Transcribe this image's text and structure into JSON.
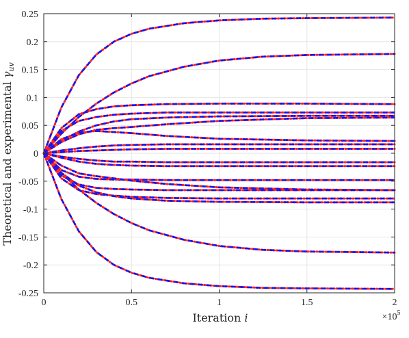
{
  "chart_data": {
    "type": "line",
    "title": "",
    "xlabel": "Iteration i",
    "ylabel": "Theoretical and experimental γ_uv",
    "xlabel_text": "Iteration",
    "xlabel_var": "i",
    "ylabel_text": "Theoretical and experimental",
    "ylabel_var": "γ",
    "ylabel_sub": "uv",
    "x_exponent_base": "×10",
    "x_exponent_power": "5",
    "xlim": [
      0,
      200000
    ],
    "ylim": [
      -0.25,
      0.25
    ],
    "x_tick_values": [
      0,
      50000,
      100000,
      150000,
      200000
    ],
    "x_tick_labels": [
      "0",
      "0.5",
      "1",
      "1.5",
      "2"
    ],
    "y_tick_values": [
      0.25,
      0.2,
      0.15,
      0.1,
      0.05,
      0,
      -0.05,
      -0.1,
      -0.15,
      -0.2,
      -0.25
    ],
    "y_tick_labels": [
      "0.25",
      "0.2",
      "0.15",
      "0.1",
      "0.05",
      "0",
      "-0.05",
      "-0.1",
      "-0.15",
      "-0.2",
      "-0.25"
    ],
    "grid": true,
    "styles": {
      "theoretical": {
        "color": "#ff2020",
        "dash": "dotted"
      },
      "experimental": {
        "color": "#1515ee",
        "dash": "dashed"
      }
    },
    "series": [
      {
        "values": [
          [
            0,
            0
          ],
          [
            10000,
            0.082
          ],
          [
            20000,
            0.14
          ],
          [
            30000,
            0.177
          ],
          [
            40000,
            0.2
          ],
          [
            50000,
            0.214
          ],
          [
            60000,
            0.223
          ],
          [
            80000,
            0.233
          ],
          [
            100000,
            0.238
          ],
          [
            125000,
            0.241
          ],
          [
            150000,
            0.242
          ],
          [
            200000,
            0.243
          ]
        ]
      },
      {
        "values": [
          [
            0,
            0
          ],
          [
            10000,
            0.035
          ],
          [
            20000,
            0.065
          ],
          [
            30000,
            0.089
          ],
          [
            40000,
            0.109
          ],
          [
            50000,
            0.125
          ],
          [
            60000,
            0.138
          ],
          [
            80000,
            0.155
          ],
          [
            100000,
            0.166
          ],
          [
            125000,
            0.173
          ],
          [
            150000,
            0.176
          ],
          [
            200000,
            0.178
          ]
        ]
      },
      {
        "values": [
          [
            0,
            0
          ],
          [
            10000,
            0.045
          ],
          [
            20000,
            0.07
          ],
          [
            30000,
            0.079
          ],
          [
            40000,
            0.084
          ],
          [
            50000,
            0.086
          ],
          [
            70000,
            0.088
          ],
          [
            100000,
            0.089
          ],
          [
            150000,
            0.089
          ],
          [
            200000,
            0.088
          ]
        ]
      },
      {
        "values": [
          [
            0,
            0
          ],
          [
            10000,
            0.04
          ],
          [
            20000,
            0.058
          ],
          [
            30000,
            0.065
          ],
          [
            40000,
            0.069
          ],
          [
            50000,
            0.071
          ],
          [
            70000,
            0.073
          ],
          [
            100000,
            0.073
          ],
          [
            150000,
            0.073
          ],
          [
            200000,
            0.073
          ]
        ]
      },
      {
        "values": [
          [
            0,
            0
          ],
          [
            10000,
            0.022
          ],
          [
            20000,
            0.039
          ],
          [
            30000,
            0.05
          ],
          [
            40000,
            0.057
          ],
          [
            50000,
            0.061
          ],
          [
            70000,
            0.064
          ],
          [
            100000,
            0.066
          ],
          [
            150000,
            0.067
          ],
          [
            200000,
            0.067
          ]
        ]
      },
      {
        "values": [
          [
            0,
            0
          ],
          [
            10000,
            0.02
          ],
          [
            20000,
            0.034
          ],
          [
            30000,
            0.042
          ],
          [
            40000,
            0.045
          ],
          [
            50000,
            0.047
          ],
          [
            70000,
            0.052
          ],
          [
            100000,
            0.058
          ],
          [
            150000,
            0.063
          ],
          [
            200000,
            0.064
          ]
        ]
      },
      {
        "values": [
          [
            0,
            0
          ],
          [
            10000,
            0.025
          ],
          [
            20000,
            0.037
          ],
          [
            30000,
            0.04
          ],
          [
            40000,
            0.038
          ],
          [
            50000,
            0.036
          ],
          [
            70000,
            0.031
          ],
          [
            100000,
            0.026
          ],
          [
            150000,
            0.023
          ],
          [
            200000,
            0.022
          ]
        ]
      },
      {
        "values": [
          [
            0,
            0
          ],
          [
            10000,
            0.005
          ],
          [
            20000,
            0.009
          ],
          [
            30000,
            0.012
          ],
          [
            40000,
            0.014
          ],
          [
            50000,
            0.015
          ],
          [
            70000,
            0.016
          ],
          [
            100000,
            0.016
          ],
          [
            150000,
            0.016
          ],
          [
            200000,
            0.016
          ]
        ]
      },
      {
        "values": [
          [
            0,
            0
          ],
          [
            10000,
            0.002
          ],
          [
            20000,
            0.004
          ],
          [
            30000,
            0.005
          ],
          [
            40000,
            0.006
          ],
          [
            50000,
            0.007
          ],
          [
            70000,
            0.008
          ],
          [
            100000,
            0.008
          ],
          [
            150000,
            0.008
          ],
          [
            200000,
            0.008
          ]
        ]
      },
      {
        "values": [
          [
            0,
            0
          ],
          [
            10000,
            -0.006
          ],
          [
            20000,
            -0.01
          ],
          [
            30000,
            -0.013
          ],
          [
            40000,
            -0.015
          ],
          [
            50000,
            -0.015
          ],
          [
            70000,
            -0.016
          ],
          [
            100000,
            -0.016
          ],
          [
            150000,
            -0.016
          ],
          [
            200000,
            -0.016
          ]
        ]
      },
      {
        "values": [
          [
            0,
            0
          ],
          [
            10000,
            -0.008
          ],
          [
            20000,
            -0.015
          ],
          [
            30000,
            -0.019
          ],
          [
            40000,
            -0.021
          ],
          [
            50000,
            -0.022
          ],
          [
            70000,
            -0.023
          ],
          [
            100000,
            -0.023
          ],
          [
            150000,
            -0.023
          ],
          [
            200000,
            -0.023
          ]
        ]
      },
      {
        "values": [
          [
            0,
            0
          ],
          [
            10000,
            -0.03
          ],
          [
            20000,
            -0.042
          ],
          [
            30000,
            -0.046
          ],
          [
            40000,
            -0.047
          ],
          [
            50000,
            -0.047
          ],
          [
            70000,
            -0.048
          ],
          [
            100000,
            -0.048
          ],
          [
            150000,
            -0.048
          ],
          [
            200000,
            -0.048
          ]
        ]
      },
      {
        "values": [
          [
            0,
            0
          ],
          [
            10000,
            -0.022
          ],
          [
            20000,
            -0.036
          ],
          [
            30000,
            -0.041
          ],
          [
            40000,
            -0.045
          ],
          [
            50000,
            -0.049
          ],
          [
            70000,
            -0.055
          ],
          [
            100000,
            -0.061
          ],
          [
            150000,
            -0.065
          ],
          [
            200000,
            -0.066
          ]
        ]
      },
      {
        "values": [
          [
            0,
            0
          ],
          [
            10000,
            -0.04
          ],
          [
            20000,
            -0.056
          ],
          [
            30000,
            -0.062
          ],
          [
            40000,
            -0.064
          ],
          [
            50000,
            -0.065
          ],
          [
            70000,
            -0.066
          ],
          [
            100000,
            -0.066
          ],
          [
            150000,
            -0.066
          ],
          [
            200000,
            -0.066
          ]
        ]
      },
      {
        "values": [
          [
            0,
            0
          ],
          [
            10000,
            -0.045
          ],
          [
            20000,
            -0.066
          ],
          [
            30000,
            -0.073
          ],
          [
            40000,
            -0.076
          ],
          [
            50000,
            -0.078
          ],
          [
            70000,
            -0.08
          ],
          [
            100000,
            -0.081
          ],
          [
            150000,
            -0.081
          ],
          [
            200000,
            -0.081
          ]
        ]
      },
      {
        "values": [
          [
            0,
            0
          ],
          [
            10000,
            -0.035
          ],
          [
            20000,
            -0.058
          ],
          [
            30000,
            -0.07
          ],
          [
            40000,
            -0.077
          ],
          [
            50000,
            -0.081
          ],
          [
            70000,
            -0.085
          ],
          [
            100000,
            -0.087
          ],
          [
            150000,
            -0.088
          ],
          [
            200000,
            -0.088
          ]
        ]
      },
      {
        "values": [
          [
            0,
            0
          ],
          [
            10000,
            -0.035
          ],
          [
            20000,
            -0.065
          ],
          [
            30000,
            -0.089
          ],
          [
            40000,
            -0.109
          ],
          [
            50000,
            -0.125
          ],
          [
            60000,
            -0.138
          ],
          [
            80000,
            -0.155
          ],
          [
            100000,
            -0.166
          ],
          [
            125000,
            -0.173
          ],
          [
            150000,
            -0.176
          ],
          [
            200000,
            -0.178
          ]
        ]
      },
      {
        "values": [
          [
            0,
            0
          ],
          [
            10000,
            -0.082
          ],
          [
            20000,
            -0.14
          ],
          [
            30000,
            -0.177
          ],
          [
            40000,
            -0.2
          ],
          [
            50000,
            -0.214
          ],
          [
            60000,
            -0.223
          ],
          [
            80000,
            -0.233
          ],
          [
            100000,
            -0.238
          ],
          [
            125000,
            -0.241
          ],
          [
            150000,
            -0.242
          ],
          [
            200000,
            -0.243
          ]
        ]
      }
    ]
  }
}
